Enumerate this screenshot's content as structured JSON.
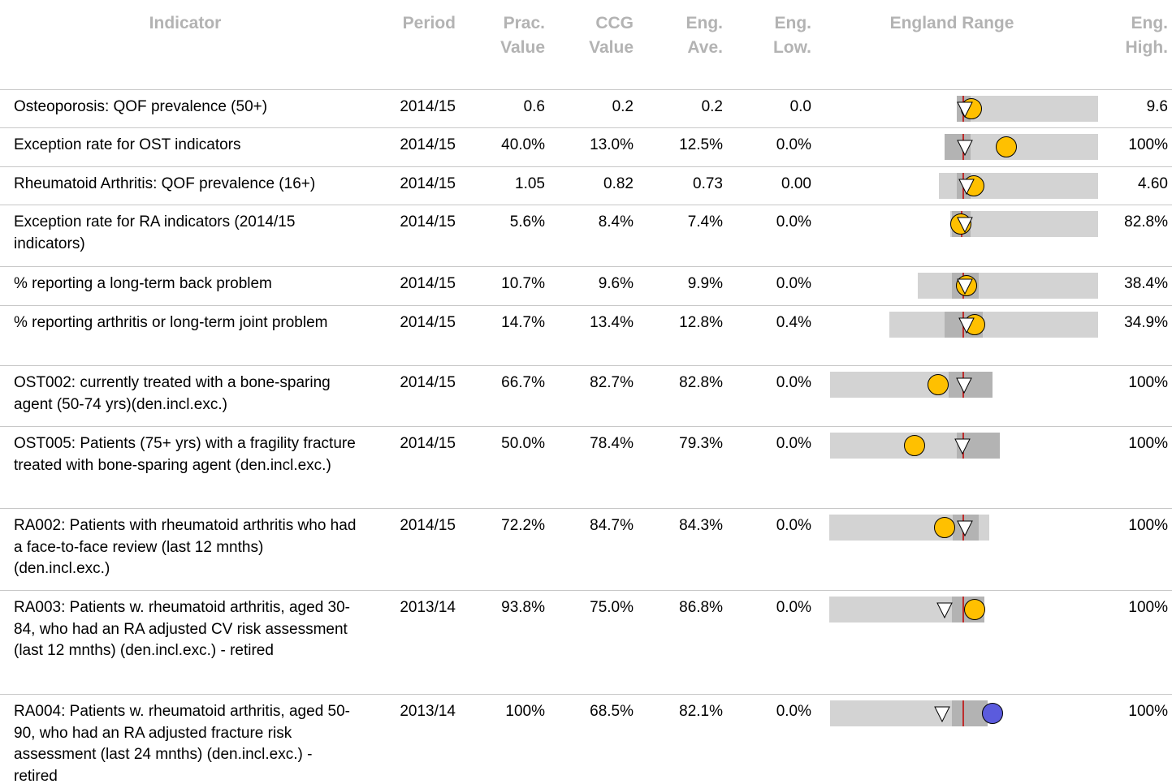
{
  "table": {
    "headers": [
      "Indicator",
      "Period",
      "Prac.\nValue",
      "CCG\nValue",
      "Eng.\nAve.",
      "Eng.\nLow.",
      "England Range",
      "Eng.\nHigh."
    ],
    "rows": [
      [
        "Osteoporosis: QOF prevalence (50+)",
        "2014/15",
        "0.6",
        "0.2",
        "0.2",
        "0.0",
        "9.6"
      ],
      [
        "Exception rate for OST indicators",
        "2014/15",
        "40.0%",
        "13.0%",
        "12.5%",
        "0.0%",
        "100%"
      ],
      [
        "Rheumatoid Arthritis: QOF prevalence (16+)",
        "2014/15",
        "1.05",
        "0.82",
        "0.73",
        "0.00",
        "4.60"
      ],
      [
        "Exception rate for RA indicators (2014/15 indicators)",
        "2014/15",
        "5.6%",
        "8.4%",
        "7.4%",
        "0.0%",
        "82.8%"
      ],
      [
        "% reporting a long-term back problem",
        "2014/15",
        "10.7%",
        "9.6%",
        "9.9%",
        "0.0%",
        "38.4%"
      ],
      [
        "% reporting arthritis or long-term joint problem",
        "2014/15",
        "14.7%",
        "13.4%",
        "12.8%",
        "0.4%",
        "34.9%"
      ],
      [
        "OST002: currently treated with a bone-sparing agent (50-74 yrs)(den.incl.exc.)",
        "2014/15",
        "66.7%",
        "82.7%",
        "82.8%",
        "0.0%",
        "100%"
      ],
      [
        "OST005: Patients (75+ yrs) with a fragility fracture treated with bone-sparing agent (den.incl.exc.)",
        "2014/15",
        "50.0%",
        "78.4%",
        "79.3%",
        "0.0%",
        "100%"
      ],
      [
        "RA002: Patients with rheumatoid arthritis who had a face-to-face review (last 12 mnths) (den.incl.exc.)",
        "2014/15",
        "72.2%",
        "84.7%",
        "84.3%",
        "0.0%",
        "100%"
      ],
      [
        "RA003: Patients w. rheumatoid arthritis, aged 30-84, who had an RA adjusted CV risk assessment (last 12 mnths) (den.incl.exc.) - retired",
        "2013/14",
        "93.8%",
        "75.0%",
        "86.8%",
        "0.0%",
        "100%"
      ],
      [
        "RA004: Patients w. rheumatoid arthritis, aged 50-90, who had an RA adjusted fracture risk assessment (last 24 mnths) (den.incl.exc.) - retired",
        "2013/14",
        "100%",
        "68.5%",
        "82.1%",
        "0.0%",
        "100%"
      ]
    ]
  }
}
